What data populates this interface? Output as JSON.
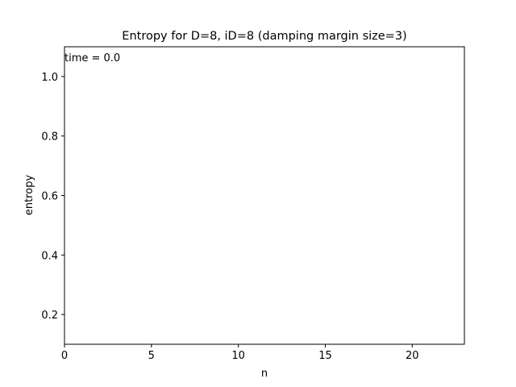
{
  "chart_data": {
    "type": "line",
    "title": "Entropy for D=8, iD=8 (damping margin size=3)",
    "xlabel": "n",
    "ylabel": "entropy",
    "xlim": [
      0,
      23
    ],
    "ylim": [
      0.1,
      1.1
    ],
    "xticks": [
      0,
      5,
      10,
      15,
      20
    ],
    "yticks": [
      0.2,
      0.4,
      0.6,
      0.8,
      1.0
    ],
    "xtick_labels": [
      "0",
      "5",
      "10",
      "15",
      "20"
    ],
    "ytick_labels": [
      "0.2",
      "0.4",
      "0.6",
      "0.8",
      "1.0"
    ],
    "annotation": "time = 0.0",
    "grid": false,
    "series": []
  }
}
